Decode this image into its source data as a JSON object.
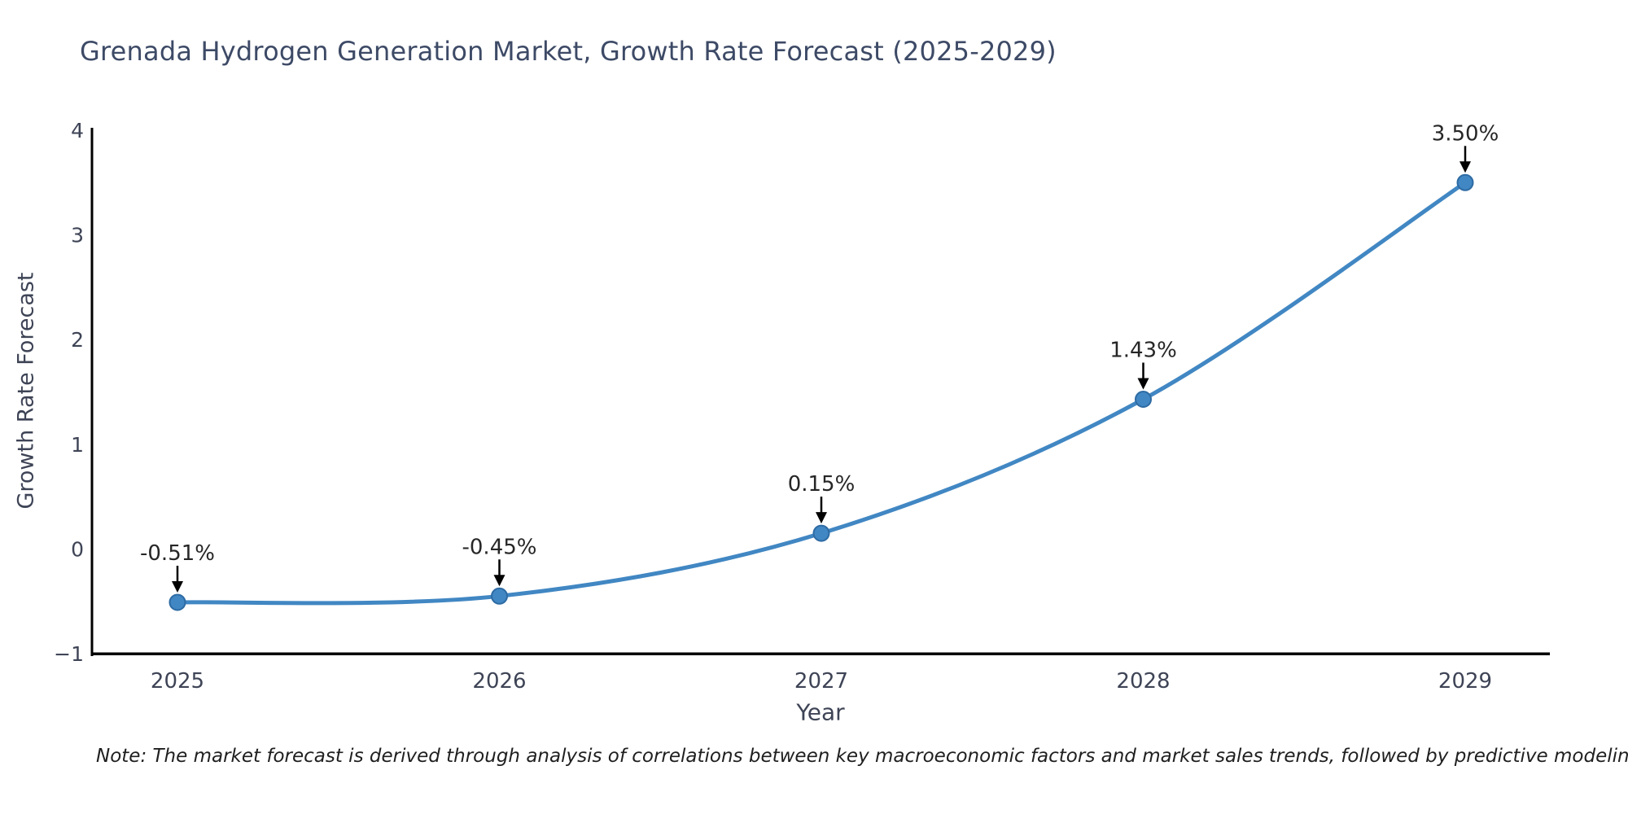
{
  "chart_data": {
    "type": "line",
    "title": "Grenada Hydrogen Generation Market, Growth Rate Forecast (2025-2029)",
    "xlabel": "Year",
    "ylabel": "Growth Rate Forecast",
    "categories": [
      "2025",
      "2026",
      "2027",
      "2028",
      "2029"
    ],
    "values": [
      -0.51,
      -0.45,
      0.15,
      1.43,
      3.5
    ],
    "point_labels": [
      "-0.51%",
      "-0.45%",
      "0.15%",
      "1.43%",
      "3.50%"
    ],
    "ylim": [
      -1,
      4
    ],
    "yticks": [
      -1,
      0,
      1,
      2,
      3,
      4
    ],
    "ytick_labels": [
      "−1",
      "0",
      "1",
      "2",
      "3",
      "4"
    ],
    "grid": false,
    "legend": "none",
    "line_color": "#4187c3",
    "marker_fill_color": "#4187c3",
    "marker_edge_color": "#2e6ba3",
    "annotation_color": "#262626",
    "arrow_color": "#000000",
    "axis_spine_color": "#000000",
    "tick_text_color": "#3e4456"
  },
  "note": {
    "text": "Note: The market forecast is derived through analysis of correlations between key macroeconomic factors and market sales trends, followed by predictive modeling to project future sales"
  }
}
